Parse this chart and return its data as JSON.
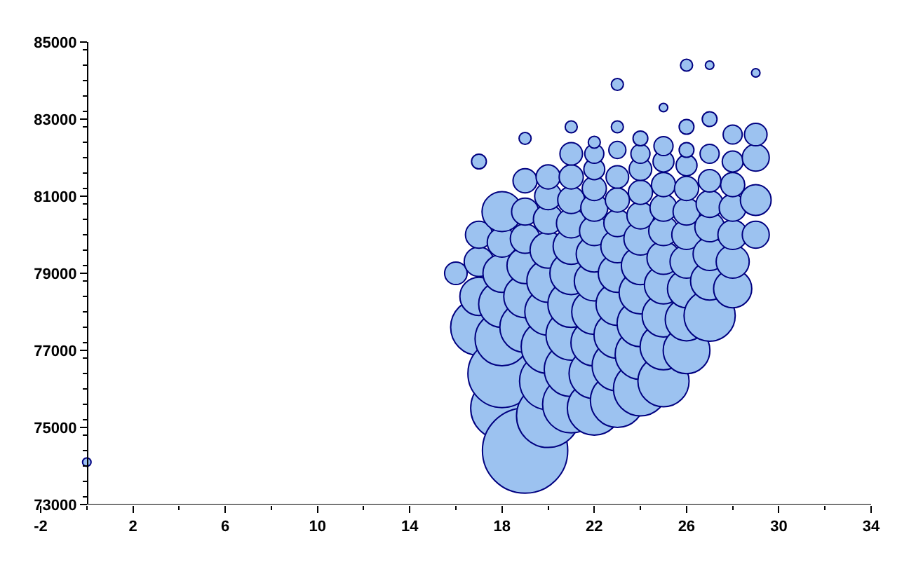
{
  "chart_data": {
    "type": "bubble",
    "xlim": [
      -2,
      34
    ],
    "xticks": [
      -2,
      2,
      6,
      10,
      14,
      18,
      22,
      26,
      30,
      34
    ],
    "ylim": [
      73000,
      85000
    ],
    "yticks": [
      73000,
      75000,
      77000,
      79000,
      81000,
      83000,
      85000
    ],
    "series": [
      {
        "color": "#9cc2f0",
        "x": [
          0,
          16,
          17,
          17,
          17,
          17,
          17,
          18,
          18,
          18,
          18,
          18,
          18,
          18,
          19,
          19,
          19,
          19,
          19,
          19,
          19,
          19,
          20,
          20,
          20,
          20,
          20,
          20,
          20,
          20,
          20,
          21,
          21,
          21,
          21,
          21,
          21,
          21,
          21,
          21,
          21,
          21,
          22,
          22,
          22,
          22,
          22,
          22,
          22,
          22,
          22,
          22,
          22,
          22,
          23,
          23,
          23,
          23,
          23,
          23,
          23,
          23,
          23,
          23,
          23,
          23,
          24,
          24,
          24,
          24,
          24,
          24,
          24,
          24,
          24,
          24,
          24,
          25,
          25,
          25,
          25,
          25,
          25,
          25,
          25,
          25,
          25,
          25,
          26,
          26,
          26,
          26,
          26,
          26,
          26,
          26,
          26,
          26,
          26,
          27,
          27,
          27,
          27,
          27,
          27,
          27,
          27,
          27,
          28,
          28,
          28,
          28,
          28,
          28,
          28,
          29,
          29,
          29,
          29,
          29
        ],
        "values": [
          74100,
          79000,
          77600,
          78400,
          79300,
          80000,
          81900,
          75500,
          76400,
          77300,
          78200,
          79000,
          79800,
          80600,
          74400,
          77600,
          78400,
          79200,
          79900,
          80600,
          81400,
          82500,
          75300,
          76200,
          77100,
          78000,
          78800,
          79600,
          80400,
          81000,
          81500,
          75600,
          76500,
          77400,
          78200,
          79000,
          79700,
          80300,
          80900,
          81500,
          82100,
          82800,
          75500,
          76400,
          77200,
          78000,
          78800,
          79500,
          80100,
          80700,
          81200,
          81700,
          82100,
          82400,
          75700,
          76600,
          77400,
          78200,
          79000,
          79700,
          80300,
          80900,
          81500,
          82200,
          82800,
          83900,
          76000,
          76900,
          77700,
          78500,
          79200,
          79900,
          80500,
          81100,
          81700,
          82100,
          82500,
          76200,
          77100,
          77900,
          78700,
          79400,
          80100,
          80700,
          81300,
          81900,
          82300,
          83300,
          77000,
          77800,
          78600,
          79300,
          80000,
          80600,
          81200,
          81800,
          82200,
          82800,
          84400,
          77900,
          78800,
          79500,
          80200,
          80800,
          81400,
          82100,
          83000,
          84400,
          78600,
          79300,
          80000,
          80700,
          81300,
          81900,
          82600,
          80000,
          80900,
          82000,
          82600,
          84200
        ],
        "sizes": [
          0.01,
          0.07,
          0.44,
          0.2,
          0.12,
          0.1,
          0.03,
          0.54,
          0.64,
          0.4,
          0.3,
          0.2,
          0.12,
          0.22,
          1.0,
          0.35,
          0.25,
          0.18,
          0.12,
          0.1,
          0.08,
          0.02,
          0.55,
          0.45,
          0.4,
          0.3,
          0.25,
          0.18,
          0.12,
          0.1,
          0.08,
          0.45,
          0.4,
          0.35,
          0.3,
          0.25,
          0.18,
          0.12,
          0.1,
          0.08,
          0.07,
          0.02,
          0.4,
          0.35,
          0.3,
          0.28,
          0.22,
          0.18,
          0.12,
          0.1,
          0.08,
          0.06,
          0.05,
          0.02,
          0.4,
          0.35,
          0.3,
          0.25,
          0.2,
          0.15,
          0.1,
          0.08,
          0.07,
          0.04,
          0.02,
          0.02,
          0.4,
          0.35,
          0.3,
          0.25,
          0.2,
          0.15,
          0.1,
          0.08,
          0.07,
          0.05,
          0.03,
          0.36,
          0.3,
          0.25,
          0.2,
          0.15,
          0.12,
          0.1,
          0.08,
          0.06,
          0.05,
          0.01,
          0.3,
          0.25,
          0.2,
          0.15,
          0.12,
          0.1,
          0.08,
          0.06,
          0.03,
          0.03,
          0.02,
          0.36,
          0.2,
          0.15,
          0.12,
          0.1,
          0.07,
          0.05,
          0.03,
          0.01,
          0.2,
          0.15,
          0.12,
          0.1,
          0.08,
          0.06,
          0.05,
          0.1,
          0.13,
          0.1,
          0.07,
          0.01
        ]
      }
    ]
  }
}
